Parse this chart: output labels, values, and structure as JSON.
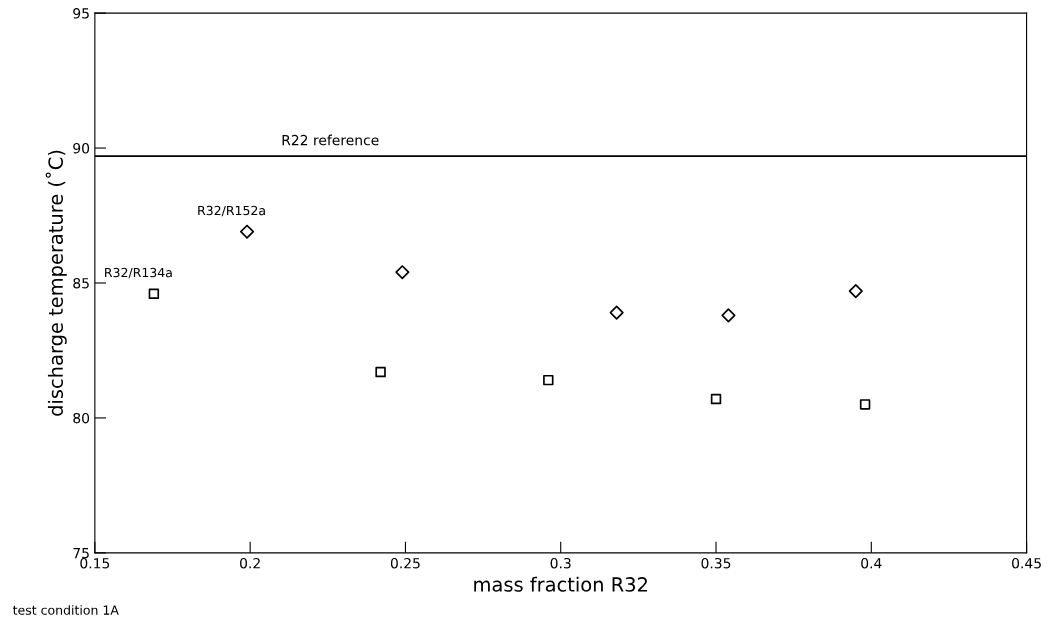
{
  "chart_data": {
    "type": "scatter",
    "xlabel": "mass fraction R32",
    "ylabel": "discharge temperature (˚C)",
    "series": [
      {
        "name": "R32/R134a",
        "color": "#000000",
        "marker": "square",
        "x": [
          0.169,
          0.242,
          0.296,
          0.35,
          0.398
        ],
        "values": [
          84.6,
          81.7,
          81.4,
          80.7,
          80.5
        ]
      },
      {
        "name": "R32/R152a",
        "color": "#000000",
        "marker": "diamond",
        "x": [
          0.199,
          0.249,
          0.318,
          0.354,
          0.395
        ],
        "values": [
          86.9,
          85.4,
          83.9,
          83.8,
          84.7
        ]
      }
    ],
    "xlim": [
      0.15,
      0.45
    ],
    "xticks": [
      {
        "value": 0.15,
        "label": "0.15"
      },
      {
        "value": 0.2,
        "label": "0.2"
      },
      {
        "value": 0.25,
        "label": "0.25"
      },
      {
        "value": 0.3,
        "label": "0.3"
      },
      {
        "value": 0.35,
        "label": "0.35"
      },
      {
        "value": 0.4,
        "label": "0.4"
      },
      {
        "value": 0.45,
        "label": "0.45"
      }
    ],
    "ylim": [
      75,
      95
    ],
    "yticks": [
      75,
      80,
      85,
      90,
      95
    ],
    "ref_lines": [
      {
        "axis": "y",
        "value": 89.7,
        "label": "R22 reference",
        "color": "#000000"
      }
    ],
    "annotations": [
      "test condition 1A"
    ],
    "grid": false,
    "legend": false
  }
}
